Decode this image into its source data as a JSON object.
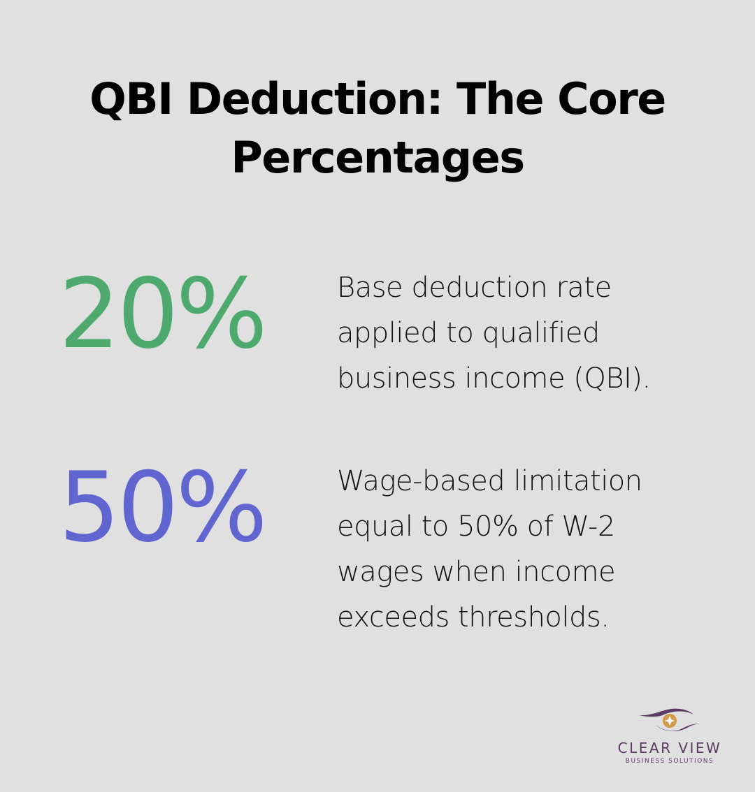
{
  "title": "QBI Deduction: The Core Percentages",
  "stats": [
    {
      "value": "20%",
      "color": "#4ea96e",
      "description": "Base deduction rate applied to qualified business income (QBI)."
    },
    {
      "value": "50%",
      "color": "#6065d0",
      "description": "Wage-based limitation equal to 50% of W-2 wages when income exceeds thresholds."
    }
  ],
  "logo": {
    "icon": "eye-star-icon",
    "name": "CLEAR VIEW",
    "tagline": "BUSINESS SOLUTIONS",
    "primary_color": "#5b3a63",
    "accent_color": "#d39a4e"
  },
  "background_color": "#dfe0df"
}
